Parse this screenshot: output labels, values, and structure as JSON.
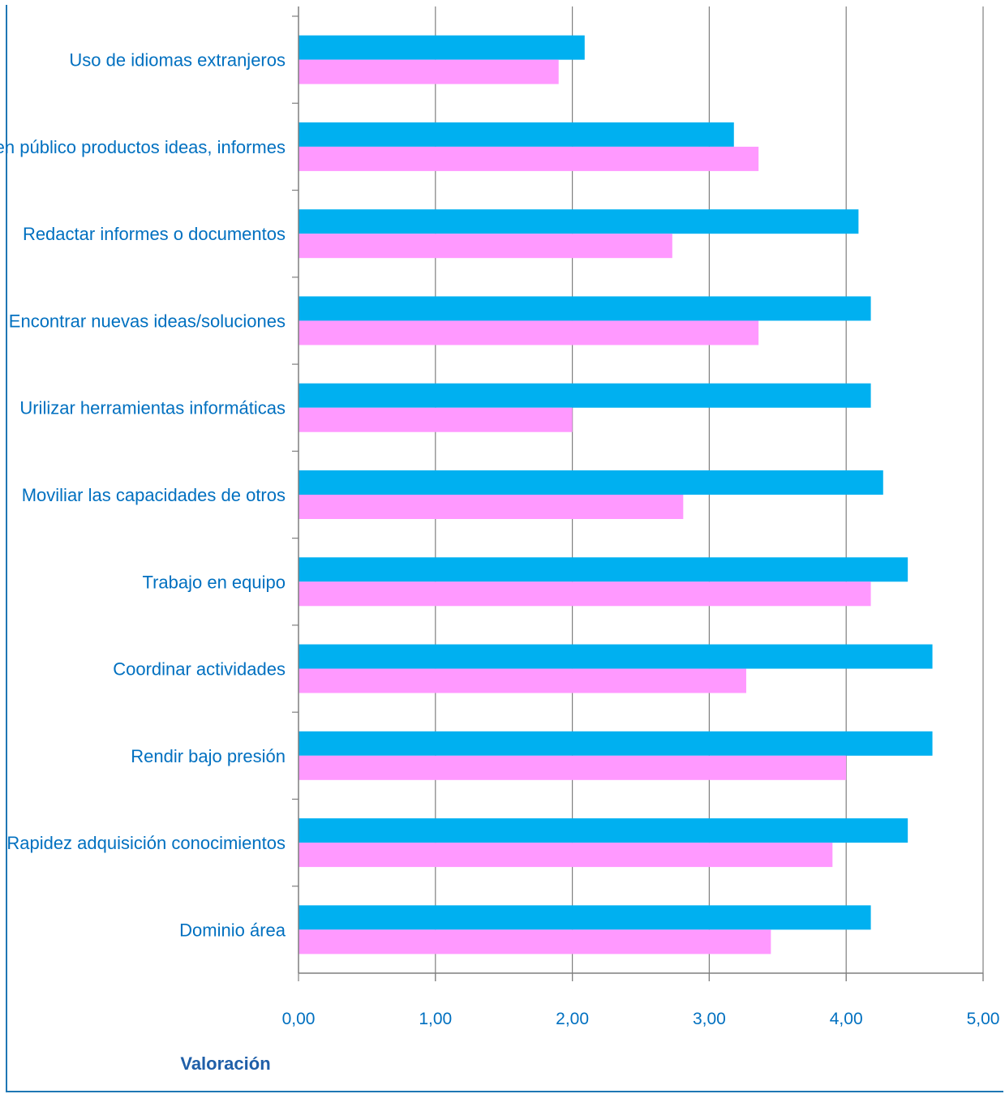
{
  "chart_data": {
    "type": "bar",
    "orientation": "horizontal",
    "categories": [
      "Uso de idiomas extranjeros",
      "Presentar en público productos ideas, informes",
      "Redactar informes o documentos",
      "Encontrar nuevas ideas/soluciones",
      "Urilizar herramientas informáticas",
      "Moviliar las capacidades de otros",
      "Trabajo en equipo",
      "Coordinar  actividades",
      "Rendir bajo presión",
      "Rapidez adquisición conocimientos",
      "Dominio área"
    ],
    "series": [
      {
        "color": "#00b0f0",
        "values": [
          2.09,
          3.18,
          4.09,
          4.18,
          4.18,
          4.27,
          4.45,
          4.63,
          4.63,
          4.45,
          4.18
        ]
      },
      {
        "color": "#ff99ff",
        "values": [
          1.9,
          3.36,
          2.73,
          3.36,
          2.0,
          2.81,
          4.18,
          3.27,
          4.0,
          3.9,
          3.45
        ]
      }
    ],
    "xticks": [
      "0,00",
      "1,00",
      "2,00",
      "3,00",
      "4,00",
      "5,00"
    ],
    "xlim": [
      0,
      5
    ],
    "xlabel": "Valoración",
    "grid": "vertical",
    "legend": "none"
  }
}
